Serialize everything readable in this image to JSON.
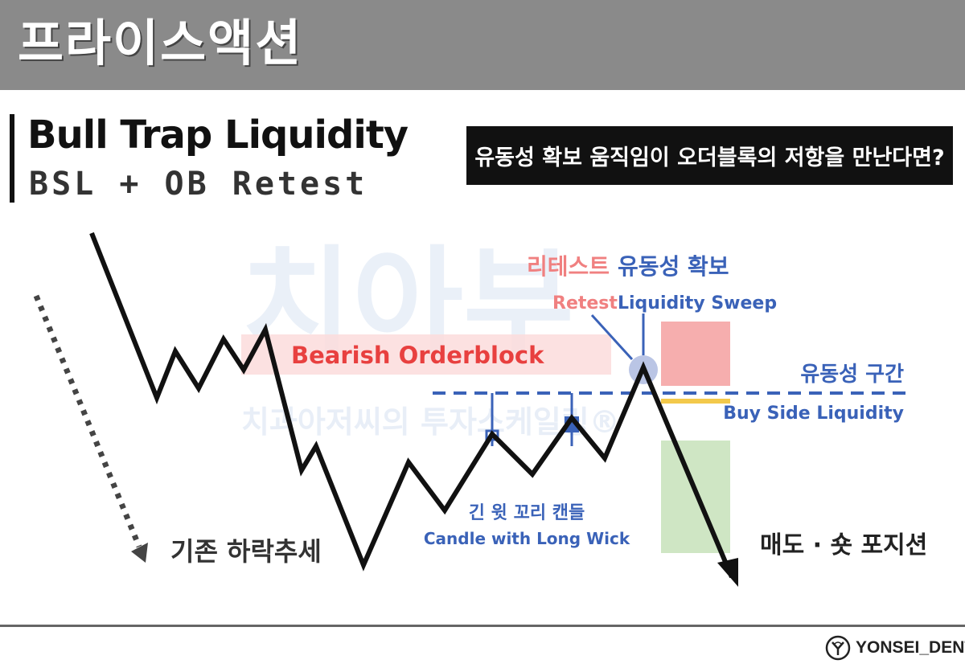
{
  "header": {
    "title": "프라이스액션"
  },
  "main": {
    "title": "Bull Trap Liquidity",
    "subtitle": "BSL + OB Retest",
    "question": "유동성 확보 움직임이 오더블록의 저항을 만난다면?"
  },
  "diagram": {
    "orderblock_label": "Bearish Orderblock",
    "retest_kr": "리테스트",
    "sweep_kr": "유동성 확보",
    "retest_en": "Retest",
    "sweep_en": "Liquidity Sweep",
    "liquidity_zone_kr": "유동성 구간",
    "liquidity_zone_en": "Buy Side Liquidity",
    "wick_kr": "긴 윗 꼬리 캔들",
    "wick_en": "Candle with Long Wick",
    "downtrend": "기존 하락추세",
    "short_position": "매도 · 숏 포지션",
    "watermark_big": "치아부",
    "watermark_small": "치과아저씨의 투자스케일링®",
    "colors": {
      "blue": "#3a62b8",
      "red": "#e8403f",
      "orderblock_fill": "#fbdcdc",
      "stop_zone": "#f5a5a5",
      "profit_zone": "#cfe6c4",
      "entry_line": "#f3c94b"
    }
  },
  "footer": {
    "brand": "YONSEI_DENT"
  }
}
